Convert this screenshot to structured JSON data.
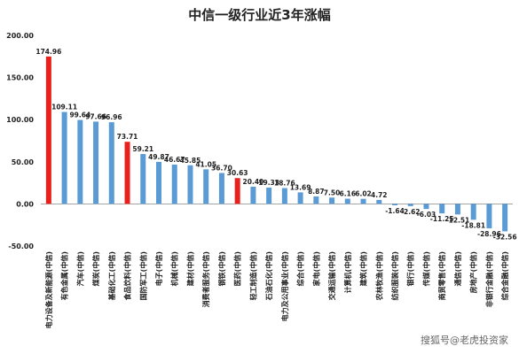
{
  "watermark": "搜狐号@老虎投资家",
  "chart_data": {
    "type": "bar",
    "title": "中信一级行业近3年涨幅",
    "xlabel": "",
    "ylabel": "",
    "ylim": [
      -50,
      200
    ],
    "yticks": [
      "200.00",
      "150.00",
      "100.00",
      "50.00",
      "0.00",
      "-50.00"
    ],
    "grid": false,
    "colors": {
      "default": "#5b9bd5",
      "highlight": "#e8211d"
    },
    "categories": [
      "电力设备及新能源(中信)",
      "有色金属(中信)",
      "汽车(中信)",
      "煤炭(中信)",
      "基础化工(中信)",
      "食品饮料(中信)",
      "国防军工(中信)",
      "电子(中信)",
      "机械(中信)",
      "建材(中信)",
      "消费者服务(中信)",
      "钢铁(中信)",
      "医药(中信)",
      "轻工制造(中信)",
      "石油石化(中信)",
      "电力及公用事业(中信)",
      "综合(中信)",
      "家电(中信)",
      "交通运输(中信)",
      "计算机(中信)",
      "建筑(中信)",
      "农林牧渔(中信)",
      "纺织服装(中信)",
      "银行(中信)",
      "传媒(中信)",
      "商贸零售(中信)",
      "通信(中信)",
      "房地产(中信)",
      "非银行金融(中信)",
      "综合金融(中信)"
    ],
    "values": [
      174.96,
      109.11,
      99.64,
      97.66,
      96.96,
      73.71,
      59.21,
      49.87,
      46.67,
      45.85,
      41.05,
      36.7,
      30.63,
      20.4,
      19.33,
      18.76,
      13.69,
      8.87,
      7.5,
      6.16,
      6.02,
      4.72,
      -1.64,
      -2.62,
      -6.03,
      -11.25,
      -12.51,
      -18.81,
      -28.96,
      -32.56
    ],
    "labels": [
      "174.96",
      "109.11",
      "99.64",
      "97.66",
      "96.96",
      "73.71",
      "59.21",
      "49.87",
      "46.67",
      "45.85",
      "41.05",
      "36.70",
      "30.63",
      "20.40",
      "19.33",
      "18.76",
      "13.69",
      "8.87",
      "7.50",
      "6.16",
      "6.02",
      "4.72",
      "-1.64",
      "-2.62",
      "-6.03",
      "-11.25",
      "-12.51",
      "-18.81",
      "-28.96",
      "-32.56"
    ],
    "highlight": [
      true,
      false,
      false,
      false,
      false,
      true,
      false,
      false,
      false,
      false,
      false,
      false,
      true,
      false,
      false,
      false,
      false,
      false,
      false,
      false,
      false,
      false,
      false,
      false,
      false,
      false,
      false,
      false,
      false,
      false
    ]
  }
}
